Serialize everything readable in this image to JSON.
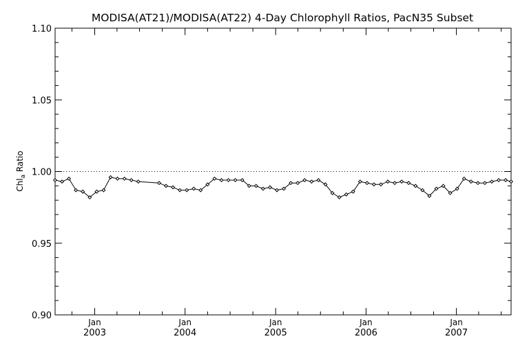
{
  "chart_data": {
    "type": "line",
    "title": "MODISA(AT21)/MODISA(AT22) 4-Day Chlorophyll Ratios, PacN35 Subset",
    "ylabel_main": "Chl",
    "ylabel_sub": "a",
    "ylabel_rest": " Ratio",
    "xlabel": "",
    "ylim": [
      0.9,
      1.1
    ],
    "xlim": [
      "2002-07-25",
      "2007-08-10"
    ],
    "y_ticks": [
      "0.90",
      "0.95",
      "1.00",
      "1.05",
      "1.10"
    ],
    "x_ticks": [
      {
        "date": "2003-01-01",
        "month": "Jan",
        "year": "2003"
      },
      {
        "date": "2004-01-01",
        "month": "Jan",
        "year": "2004"
      },
      {
        "date": "2005-01-01",
        "month": "Jan",
        "year": "2005"
      },
      {
        "date": "2006-01-01",
        "month": "Jan",
        "year": "2006"
      },
      {
        "date": "2007-01-01",
        "month": "Jan",
        "year": "2007"
      }
    ],
    "reference_line": 1.0,
    "grid": false,
    "series": [
      {
        "marker": "diamond",
        "color": "#000000",
        "x": [
          "2002-07-25",
          "2002-08-22",
          "2002-09-19",
          "2002-10-17",
          "2002-11-14",
          "2002-12-12",
          "2003-01-09",
          "2003-02-06",
          "2003-03-06",
          "2003-04-03",
          "2003-05-01",
          "2003-05-29",
          "2003-06-26",
          "2003-09-18",
          "2003-10-16",
          "2003-11-13",
          "2003-12-11",
          "2004-01-08",
          "2004-02-05",
          "2004-03-04",
          "2004-04-01",
          "2004-04-29",
          "2004-05-27",
          "2004-06-24",
          "2004-07-22",
          "2004-08-19",
          "2004-09-16",
          "2004-10-14",
          "2004-11-11",
          "2004-12-09",
          "2005-01-06",
          "2005-02-03",
          "2005-03-03",
          "2005-03-31",
          "2005-04-28",
          "2005-05-26",
          "2005-06-23",
          "2005-07-21",
          "2005-08-18",
          "2005-09-15",
          "2005-10-13",
          "2005-11-10",
          "2005-12-08",
          "2006-01-05",
          "2006-02-02",
          "2006-03-02",
          "2006-03-30",
          "2006-04-27",
          "2006-05-25",
          "2006-06-22",
          "2006-07-20",
          "2006-08-17",
          "2006-09-14",
          "2006-10-12",
          "2006-11-09",
          "2006-12-07",
          "2007-01-04",
          "2007-02-01",
          "2007-03-01",
          "2007-03-29",
          "2007-04-26",
          "2007-05-24",
          "2007-06-21",
          "2007-07-19",
          "2007-08-10"
        ],
        "y": [
          0.994,
          0.993,
          0.995,
          0.987,
          0.986,
          0.982,
          0.986,
          0.987,
          0.996,
          0.995,
          0.995,
          0.994,
          0.993,
          0.992,
          0.99,
          0.989,
          0.987,
          0.987,
          0.988,
          0.987,
          0.991,
          0.995,
          0.994,
          0.994,
          0.994,
          0.994,
          0.99,
          0.99,
          0.988,
          0.989,
          0.987,
          0.988,
          0.992,
          0.992,
          0.994,
          0.993,
          0.994,
          0.991,
          0.985,
          0.982,
          0.984,
          0.986,
          0.993,
          0.992,
          0.991,
          0.991,
          0.993,
          0.992,
          0.993,
          0.992,
          0.99,
          0.987,
          0.983,
          0.988,
          0.99,
          0.985,
          0.988,
          0.995,
          0.993,
          0.992,
          0.992,
          0.993,
          0.994,
          0.994,
          0.993
        ]
      }
    ]
  }
}
